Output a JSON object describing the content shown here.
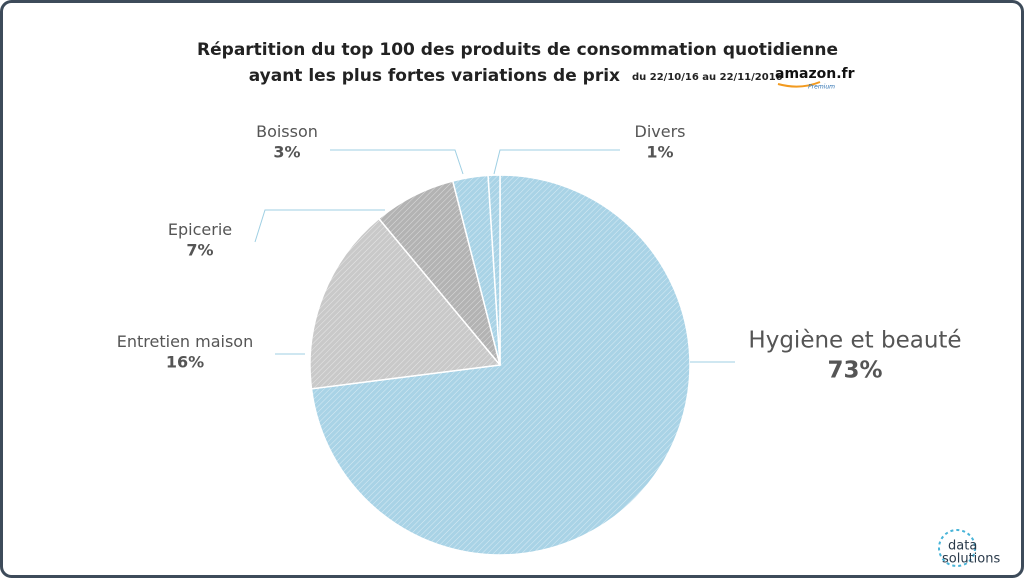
{
  "chart_data": {
    "type": "pie",
    "title": [
      "Répartition du top 100 des produits de consommation quotidienne",
      "ayant les plus fortes variations de prix"
    ],
    "subtitle": "du 22/10/16 au 22/11/2016",
    "categories": [
      "Hygiène et beauté",
      "Entretien maison",
      "Epicerie",
      "Boisson",
      "Divers"
    ],
    "values": [
      73,
      16,
      7,
      3,
      1
    ],
    "value_labels": [
      "73%",
      "16%",
      "7%",
      "3%",
      "1%"
    ],
    "colors": [
      "#a9d3e6",
      "#c9c9c9",
      "#b3b3b3",
      "#a9d3e6",
      "#a9d3e6"
    ]
  },
  "branding": {
    "amazon": "amazon.fr",
    "amazon_sub": "Premium",
    "logo_top": "data",
    "logo_bottom": "solutions"
  }
}
